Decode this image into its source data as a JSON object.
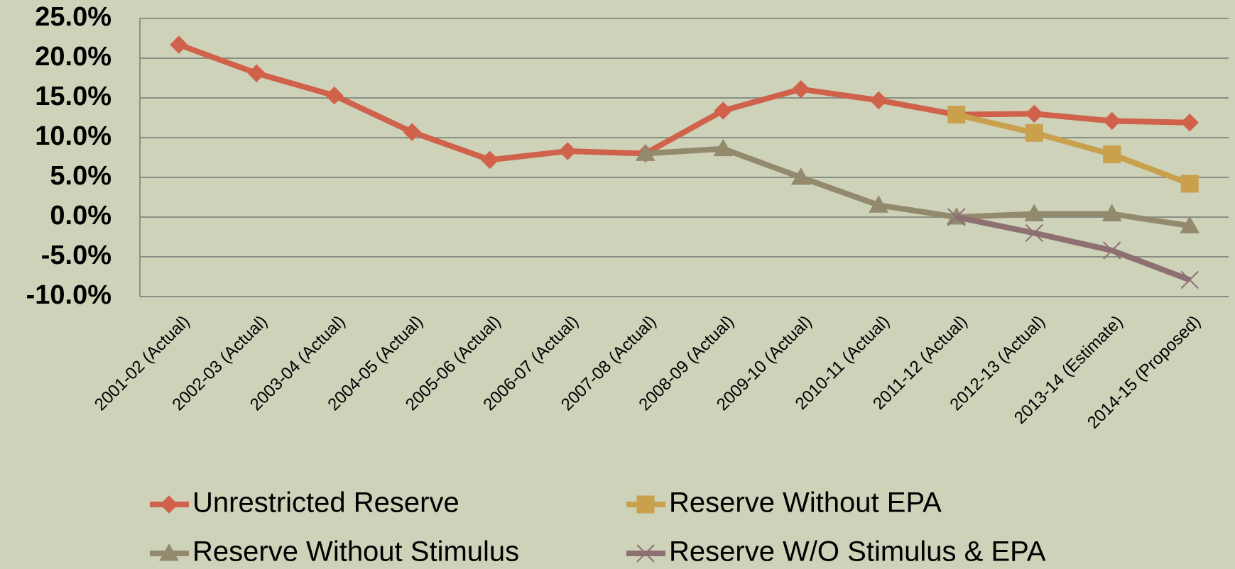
{
  "chart_data": {
    "type": "line",
    "categories": [
      "2001-02 (Actual)",
      "2002-03 (Actual)",
      "2003-04 (Actual)",
      "2004-05 (Actual)",
      "2005-06 (Actual)",
      "2006-07 (Actual)",
      "2007-08 (Actual)",
      "2008-09 (Actual)",
      "2009-10 (Actual)",
      "2010-11 (Actual)",
      "2011-12 (Actual)",
      "2012-13 (Actual)",
      "2013-14 (Estimate)",
      "2014-15 (Proposed)"
    ],
    "series": [
      {
        "name": "Unrestricted Reserve",
        "color": "#d0614a",
        "marker": "diamond",
        "values": [
          21.7,
          18.1,
          15.3,
          10.7,
          7.2,
          8.3,
          8.0,
          13.4,
          16.1,
          14.7,
          12.9,
          13.0,
          12.1,
          11.9
        ]
      },
      {
        "name": "Reserve Without EPA",
        "color": "#c9a04c",
        "marker": "square",
        "values": [
          null,
          null,
          null,
          null,
          null,
          null,
          null,
          null,
          null,
          null,
          12.9,
          10.6,
          7.9,
          4.2
        ]
      },
      {
        "name": "Reserve Without Stimulus",
        "color": "#938a6e",
        "marker": "triangle",
        "values": [
          null,
          null,
          null,
          null,
          null,
          null,
          8.0,
          8.6,
          5.0,
          1.5,
          0.0,
          0.4,
          0.4,
          -1.1
        ]
      },
      {
        "name": "Reserve W/O Stimulus & EPA",
        "color": "#8e6f72",
        "marker": "x",
        "values": [
          null,
          null,
          null,
          null,
          null,
          null,
          null,
          null,
          null,
          null,
          0.0,
          -2.0,
          -4.2,
          -7.9
        ]
      }
    ],
    "ylim": [
      -10,
      25
    ],
    "yticks": [
      {
        "value": -10,
        "label": "-10.0%"
      },
      {
        "value": -5,
        "label": "-5.0%"
      },
      {
        "value": 0,
        "label": "0.0%"
      },
      {
        "value": 5,
        "label": "5.0%"
      },
      {
        "value": 10,
        "label": "10.0%"
      },
      {
        "value": 15,
        "label": "15.0%"
      },
      {
        "value": 20,
        "label": "20.0%"
      },
      {
        "value": 25,
        "label": "25.0%"
      }
    ],
    "grid": true,
    "legend": "bottom"
  }
}
